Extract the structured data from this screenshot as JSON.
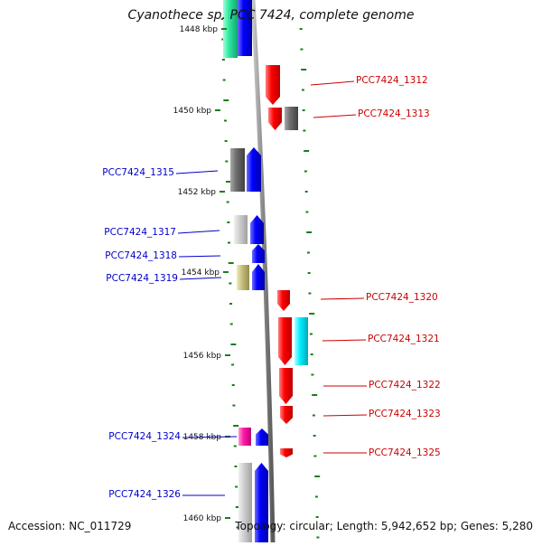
{
  "title": "Cyanothece sp. PCC 7424, complete genome",
  "accession": "Accession: NC_011729",
  "stats": "Topology: circular; Length: 5,942,652 bp; Genes: 5,280",
  "colors": {
    "tick": "#1a7f1a",
    "forward_label": "#0000cc",
    "reverse_label": "#cc0000",
    "backbone": "#8a8a8a"
  },
  "scale": [
    "1448 kbp",
    "1450 kbp",
    "1452 kbp",
    "1454 kbp",
    "1456 kbp",
    "1458 kbp",
    "1460 kbp"
  ],
  "gene_labels": [
    {
      "text": "PCC7424_1312",
      "side": "right"
    },
    {
      "text": "PCC7424_1313",
      "side": "right"
    },
    {
      "text": "PCC7424_1315",
      "side": "left"
    },
    {
      "text": "PCC7424_1317",
      "side": "left"
    },
    {
      "text": "PCC7424_1318",
      "side": "left"
    },
    {
      "text": "PCC7424_1319",
      "side": "left"
    },
    {
      "text": "PCC7424_1320",
      "side": "right"
    },
    {
      "text": "PCC7424_1321",
      "side": "right"
    },
    {
      "text": "PCC7424_1322",
      "side": "right"
    },
    {
      "text": "PCC7424_1323",
      "side": "right"
    },
    {
      "text": "PCC7424_1324",
      "side": "left"
    },
    {
      "text": "PCC7424_1325",
      "side": "right"
    },
    {
      "text": "PCC7424_1326",
      "side": "left"
    }
  ]
}
